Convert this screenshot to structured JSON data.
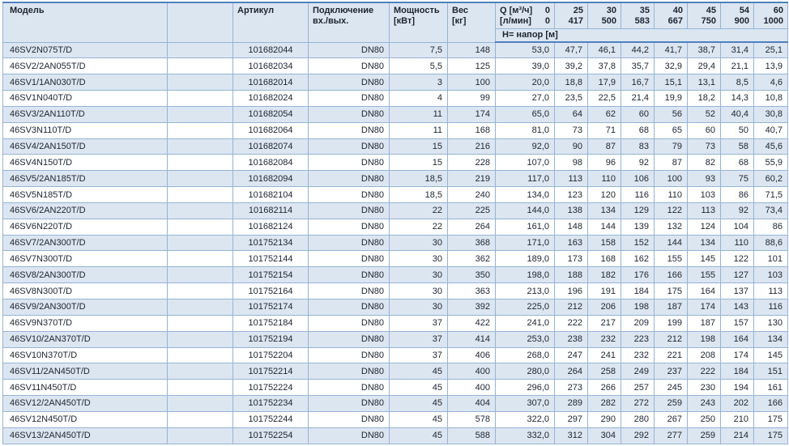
{
  "header": {
    "model": "Модель",
    "article": "Артикул",
    "connection_line1": "Подключение",
    "connection_line2": "вх./вых.",
    "power_line1": "Мощность",
    "power_line2": "[кВт]",
    "weight_line1": "Вес",
    "weight_line2": "[кг]",
    "q_m3h_label": "Q [м³/ч]",
    "q_m3h_zero": "0",
    "q_lmin_label": "[л/мин]",
    "q_lmin_zero": "0",
    "q_flows": [
      {
        "m3h": "25",
        "lmin": "417"
      },
      {
        "m3h": "30",
        "lmin": "500"
      },
      {
        "m3h": "35",
        "lmin": "583"
      },
      {
        "m3h": "40",
        "lmin": "667"
      },
      {
        "m3h": "45",
        "lmin": "750"
      },
      {
        "m3h": "54",
        "lmin": "900"
      },
      {
        "m3h": "60",
        "lmin": "1000"
      }
    ],
    "head_label": "H= напор [м]"
  },
  "colors": {
    "stripe": "#dce6f1",
    "grid_border": "#95b3d7",
    "strong_border": "#4f81bd",
    "text": "#1c2430"
  },
  "rows": [
    {
      "model": "46SV2N075T/D",
      "article": "101682044",
      "connection": "DN80",
      "power": "7,5",
      "weight": "148",
      "h": [
        "53,0",
        "47,7",
        "46,1",
        "44,2",
        "41,7",
        "38,7",
        "31,4",
        "25,1"
      ]
    },
    {
      "model": "46SV2/2AN055T/D",
      "article": "101682034",
      "connection": "DN80",
      "power": "5,5",
      "weight": "125",
      "h": [
        "39,0",
        "39,2",
        "37,8",
        "35,7",
        "32,9",
        "29,4",
        "21,1",
        "13,9"
      ]
    },
    {
      "model": "46SV1/1AN030T/D",
      "article": "101682014",
      "connection": "DN80",
      "power": "3",
      "weight": "100",
      "h": [
        "20,0",
        "18,8",
        "17,9",
        "16,7",
        "15,1",
        "13,1",
        "8,5",
        "4,6"
      ]
    },
    {
      "model": "46SV1N040T/D",
      "article": "101682024",
      "connection": "DN80",
      "power": "4",
      "weight": "99",
      "h": [
        "27,0",
        "23,5",
        "22,5",
        "21,4",
        "19,9",
        "18,2",
        "14,3",
        "10,8"
      ]
    },
    {
      "model": "46SV3/2AN110T/D",
      "article": "101682054",
      "connection": "DN80",
      "power": "11",
      "weight": "174",
      "h": [
        "65,0",
        "64",
        "62",
        "60",
        "56",
        "52",
        "40,4",
        "30,8"
      ]
    },
    {
      "model": "46SV3N110T/D",
      "article": "101682064",
      "connection": "DN80",
      "power": "11",
      "weight": "168",
      "h": [
        "81,0",
        "73",
        "71",
        "68",
        "65",
        "60",
        "50",
        "40,7"
      ]
    },
    {
      "model": "46SV4/2AN150T/D",
      "article": "101682074",
      "connection": "DN80",
      "power": "15",
      "weight": "216",
      "h": [
        "92,0",
        "90",
        "87",
        "83",
        "79",
        "73",
        "58",
        "45,6"
      ]
    },
    {
      "model": "46SV4N150T/D",
      "article": "101682084",
      "connection": "DN80",
      "power": "15",
      "weight": "228",
      "h": [
        "107,0",
        "98",
        "96",
        "92",
        "87",
        "82",
        "68",
        "55,9"
      ]
    },
    {
      "model": "46SV5/2AN185T/D",
      "article": "101682094",
      "connection": "DN80",
      "power": "18,5",
      "weight": "219",
      "h": [
        "117,0",
        "113",
        "110",
        "106",
        "100",
        "93",
        "75",
        "60,2"
      ]
    },
    {
      "model": "46SV5N185T/D",
      "article": "101682104",
      "connection": "DN80",
      "power": "18,5",
      "weight": "240",
      "h": [
        "134,0",
        "123",
        "120",
        "116",
        "110",
        "103",
        "86",
        "71,5"
      ]
    },
    {
      "model": "46SV6/2AN220T/D",
      "article": "101682114",
      "connection": "DN80",
      "power": "22",
      "weight": "225",
      "h": [
        "144,0",
        "138",
        "134",
        "129",
        "122",
        "113",
        "92",
        "73,4"
      ]
    },
    {
      "model": "46SV6N220T/D",
      "article": "101682124",
      "connection": "DN80",
      "power": "22",
      "weight": "264",
      "h": [
        "161,0",
        "148",
        "144",
        "139",
        "132",
        "124",
        "104",
        "86"
      ]
    },
    {
      "model": "46SV7/2AN300T/D",
      "article": "101752134",
      "connection": "DN80",
      "power": "30",
      "weight": "368",
      "h": [
        "171,0",
        "163",
        "158",
        "152",
        "144",
        "134",
        "110",
        "88,6"
      ]
    },
    {
      "model": "46SV7N300T/D",
      "article": "101752144",
      "connection": "DN80",
      "power": "30",
      "weight": "362",
      "h": [
        "189,0",
        "173",
        "168",
        "162",
        "155",
        "145",
        "122",
        "101"
      ]
    },
    {
      "model": "46SV8/2AN300T/D",
      "article": "101752154",
      "connection": "DN80",
      "power": "30",
      "weight": "350",
      "h": [
        "198,0",
        "188",
        "182",
        "176",
        "166",
        "155",
        "127",
        "103"
      ]
    },
    {
      "model": "46SV8N300T/D",
      "article": "101752164",
      "connection": "DN80",
      "power": "30",
      "weight": "363",
      "h": [
        "213,0",
        "196",
        "191",
        "184",
        "175",
        "164",
        "137",
        "113"
      ]
    },
    {
      "model": "46SV9/2AN300T/D",
      "article": "101752174",
      "connection": "DN80",
      "power": "30",
      "weight": "392",
      "h": [
        "225,0",
        "212",
        "206",
        "198",
        "187",
        "174",
        "143",
        "116"
      ]
    },
    {
      "model": "46SV9N370T/D",
      "article": "101752184",
      "connection": "DN80",
      "power": "37",
      "weight": "422",
      "h": [
        "241,0",
        "222",
        "217",
        "209",
        "199",
        "187",
        "157",
        "130"
      ]
    },
    {
      "model": "46SV10/2AN370T/D",
      "article": "101752194",
      "connection": "DN80",
      "power": "37",
      "weight": "414",
      "h": [
        "253,0",
        "238",
        "232",
        "223",
        "212",
        "198",
        "164",
        "134"
      ]
    },
    {
      "model": "46SV10N370T/D",
      "article": "101752204",
      "connection": "DN80",
      "power": "37",
      "weight": "406",
      "h": [
        "268,0",
        "247",
        "241",
        "232",
        "221",
        "208",
        "174",
        "145"
      ]
    },
    {
      "model": "46SV11/2AN450T/D",
      "article": "101752214",
      "connection": "DN80",
      "power": "45",
      "weight": "400",
      "h": [
        "280,0",
        "264",
        "258",
        "249",
        "237",
        "222",
        "184",
        "151"
      ]
    },
    {
      "model": "46SV11N450T/D",
      "article": "101752224",
      "connection": "DN80",
      "power": "45",
      "weight": "400",
      "h": [
        "296,0",
        "273",
        "266",
        "257",
        "245",
        "230",
        "194",
        "161"
      ]
    },
    {
      "model": "46SV12/2AN450T/D",
      "article": "101752234",
      "connection": "DN80",
      "power": "45",
      "weight": "404",
      "h": [
        "307,0",
        "289",
        "282",
        "272",
        "259",
        "243",
        "202",
        "166"
      ]
    },
    {
      "model": "46SV12N450T/D",
      "article": "101752244",
      "connection": "DN80",
      "power": "45",
      "weight": "578",
      "h": [
        "322,0",
        "297",
        "290",
        "280",
        "267",
        "250",
        "210",
        "175"
      ]
    },
    {
      "model": "46SV13/2AN450T/D",
      "article": "101752254",
      "connection": "DN80",
      "power": "45",
      "weight": "588",
      "h": [
        "332,0",
        "312",
        "304",
        "292",
        "277",
        "259",
        "214",
        "175"
      ]
    }
  ]
}
